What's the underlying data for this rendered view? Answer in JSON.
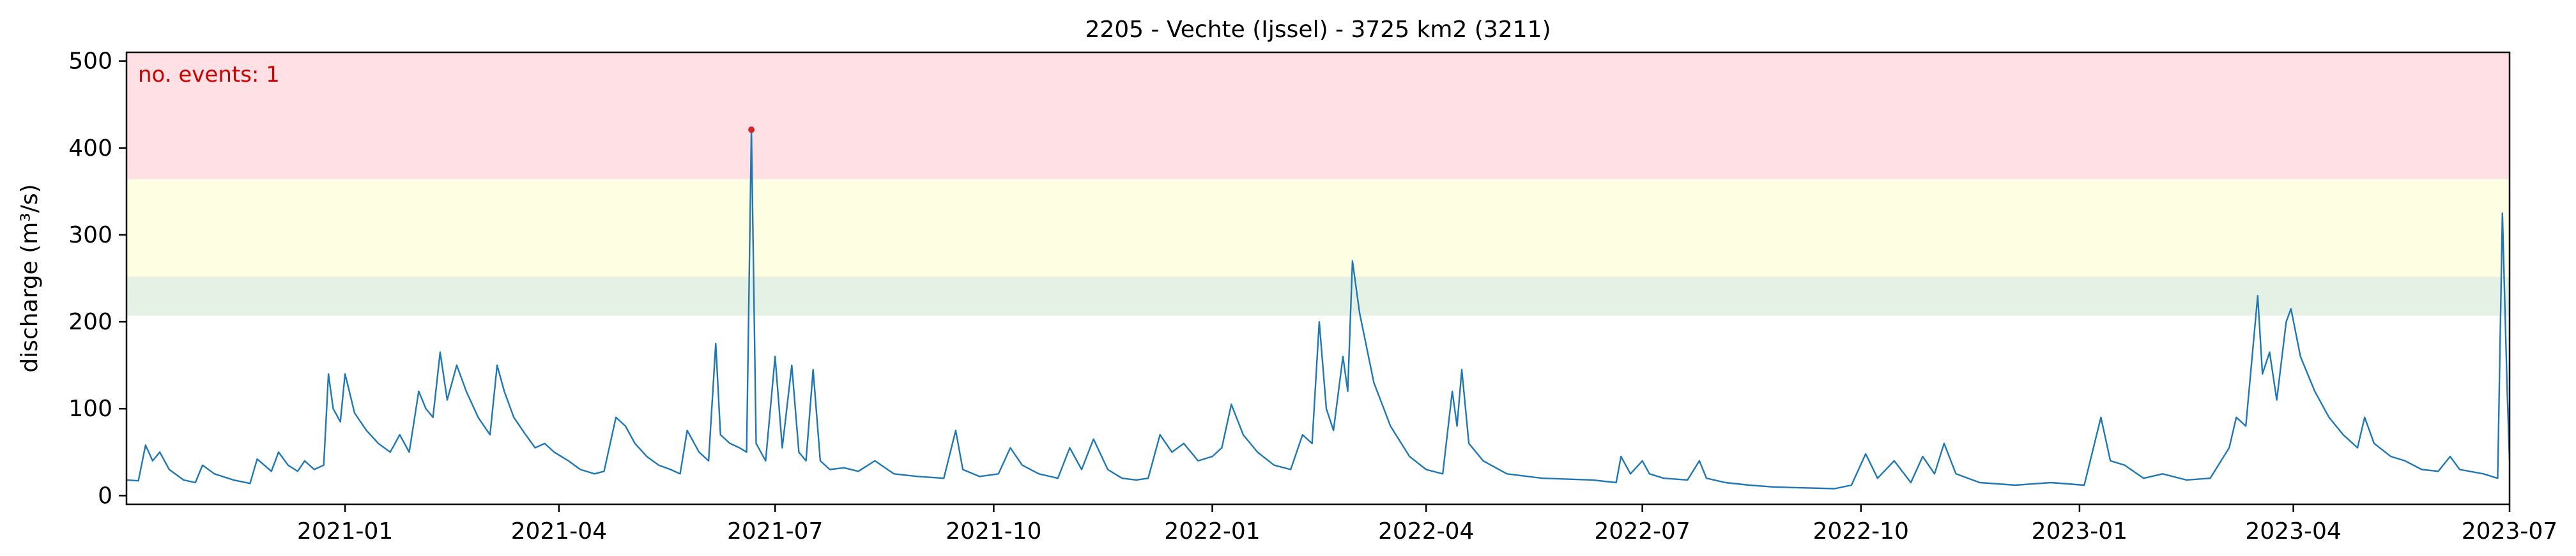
{
  "chart_data": {
    "type": "line",
    "title": "2205 - Vechte (Ijssel) - 3725 km2 (3211)",
    "ylabel": "discharge (m³/s)",
    "xlabel": "",
    "xlim": [
      "2020-10-01",
      "2023-07-01"
    ],
    "ylim": [
      -10,
      510
    ],
    "x_ticks": [
      "2021-01",
      "2021-04",
      "2021-07",
      "2021-10",
      "2022-01",
      "2022-04",
      "2022-07",
      "2022-10",
      "2023-01",
      "2023-04",
      "2023-07"
    ],
    "y_ticks": [
      0,
      100,
      200,
      300,
      400,
      500
    ],
    "grid": false,
    "annotation": "no. events: 1",
    "bands": [
      {
        "from": 207,
        "to": 252,
        "color": "#e6f1e6"
      },
      {
        "from": 252,
        "to": 364,
        "color": "#fefee3"
      },
      {
        "from": 364,
        "to": 510,
        "color": "#ffe1e5"
      }
    ],
    "series": [
      {
        "color": "#1f77b4",
        "points": [
          [
            "2020-10-01",
            18
          ],
          [
            "2020-10-06",
            17
          ],
          [
            "2020-10-09",
            58
          ],
          [
            "2020-10-12",
            40
          ],
          [
            "2020-10-15",
            50
          ],
          [
            "2020-10-19",
            30
          ],
          [
            "2020-10-25",
            18
          ],
          [
            "2020-10-30",
            15
          ],
          [
            "2020-11-02",
            35
          ],
          [
            "2020-11-07",
            25
          ],
          [
            "2020-11-15",
            18
          ],
          [
            "2020-11-22",
            14
          ],
          [
            "2020-11-25",
            42
          ],
          [
            "2020-11-28",
            35
          ],
          [
            "2020-12-01",
            28
          ],
          [
            "2020-12-04",
            50
          ],
          [
            "2020-12-08",
            35
          ],
          [
            "2020-12-12",
            28
          ],
          [
            "2020-12-15",
            40
          ],
          [
            "2020-12-19",
            30
          ],
          [
            "2020-12-23",
            35
          ],
          [
            "2020-12-25",
            140
          ],
          [
            "2020-12-27",
            100
          ],
          [
            "2020-12-30",
            85
          ],
          [
            "2021-01-01",
            140
          ],
          [
            "2021-01-05",
            95
          ],
          [
            "2021-01-10",
            75
          ],
          [
            "2021-01-15",
            60
          ],
          [
            "2021-01-20",
            50
          ],
          [
            "2021-01-24",
            70
          ],
          [
            "2021-01-28",
            50
          ],
          [
            "2021-02-01",
            120
          ],
          [
            "2021-02-04",
            100
          ],
          [
            "2021-02-07",
            90
          ],
          [
            "2021-02-10",
            165
          ],
          [
            "2021-02-13",
            110
          ],
          [
            "2021-02-17",
            150
          ],
          [
            "2021-02-21",
            120
          ],
          [
            "2021-02-26",
            90
          ],
          [
            "2021-03-03",
            70
          ],
          [
            "2021-03-06",
            150
          ],
          [
            "2021-03-09",
            120
          ],
          [
            "2021-03-13",
            90
          ],
          [
            "2021-03-18",
            70
          ],
          [
            "2021-03-22",
            55
          ],
          [
            "2021-03-26",
            60
          ],
          [
            "2021-03-30",
            50
          ],
          [
            "2021-04-05",
            40
          ],
          [
            "2021-04-10",
            30
          ],
          [
            "2021-04-16",
            25
          ],
          [
            "2021-04-20",
            28
          ],
          [
            "2021-04-25",
            90
          ],
          [
            "2021-04-29",
            80
          ],
          [
            "2021-05-03",
            60
          ],
          [
            "2021-05-08",
            45
          ],
          [
            "2021-05-13",
            35
          ],
          [
            "2021-05-18",
            30
          ],
          [
            "2021-05-22",
            25
          ],
          [
            "2021-05-25",
            75
          ],
          [
            "2021-05-30",
            50
          ],
          [
            "2021-06-03",
            40
          ],
          [
            "2021-06-06",
            175
          ],
          [
            "2021-06-08",
            70
          ],
          [
            "2021-06-12",
            60
          ],
          [
            "2021-06-16",
            55
          ],
          [
            "2021-06-19",
            50
          ],
          [
            "2021-06-21",
            421
          ],
          [
            "2021-06-23",
            60
          ],
          [
            "2021-06-27",
            40
          ],
          [
            "2021-07-01",
            160
          ],
          [
            "2021-07-04",
            55
          ],
          [
            "2021-07-08",
            150
          ],
          [
            "2021-07-11",
            50
          ],
          [
            "2021-07-14",
            40
          ],
          [
            "2021-07-17",
            145
          ],
          [
            "2021-07-20",
            40
          ],
          [
            "2021-07-24",
            30
          ],
          [
            "2021-07-30",
            32
          ],
          [
            "2021-08-05",
            28
          ],
          [
            "2021-08-12",
            40
          ],
          [
            "2021-08-20",
            25
          ],
          [
            "2021-08-30",
            22
          ],
          [
            "2021-09-10",
            20
          ],
          [
            "2021-09-15",
            75
          ],
          [
            "2021-09-18",
            30
          ],
          [
            "2021-09-25",
            22
          ],
          [
            "2021-10-03",
            25
          ],
          [
            "2021-10-08",
            55
          ],
          [
            "2021-10-13",
            35
          ],
          [
            "2021-10-20",
            25
          ],
          [
            "2021-10-28",
            20
          ],
          [
            "2021-11-02",
            55
          ],
          [
            "2021-11-07",
            30
          ],
          [
            "2021-11-12",
            65
          ],
          [
            "2021-11-18",
            30
          ],
          [
            "2021-11-24",
            20
          ],
          [
            "2021-11-30",
            18
          ],
          [
            "2021-12-05",
            20
          ],
          [
            "2021-12-10",
            70
          ],
          [
            "2021-12-15",
            50
          ],
          [
            "2021-12-20",
            60
          ],
          [
            "2021-12-26",
            40
          ],
          [
            "2022-01-01",
            45
          ],
          [
            "2022-01-05",
            55
          ],
          [
            "2022-01-09",
            105
          ],
          [
            "2022-01-14",
            70
          ],
          [
            "2022-01-20",
            50
          ],
          [
            "2022-01-27",
            35
          ],
          [
            "2022-02-03",
            30
          ],
          [
            "2022-02-08",
            70
          ],
          [
            "2022-02-12",
            60
          ],
          [
            "2022-02-15",
            200
          ],
          [
            "2022-02-18",
            100
          ],
          [
            "2022-02-21",
            75
          ],
          [
            "2022-02-25",
            160
          ],
          [
            "2022-02-27",
            120
          ],
          [
            "2022-03-01",
            270
          ],
          [
            "2022-03-04",
            210
          ],
          [
            "2022-03-10",
            130
          ],
          [
            "2022-03-17",
            80
          ],
          [
            "2022-03-25",
            45
          ],
          [
            "2022-04-01",
            30
          ],
          [
            "2022-04-08",
            25
          ],
          [
            "2022-04-12",
            120
          ],
          [
            "2022-04-14",
            80
          ],
          [
            "2022-04-16",
            145
          ],
          [
            "2022-04-19",
            60
          ],
          [
            "2022-04-25",
            40
          ],
          [
            "2022-05-05",
            25
          ],
          [
            "2022-05-20",
            20
          ],
          [
            "2022-06-10",
            18
          ],
          [
            "2022-06-20",
            15
          ],
          [
            "2022-06-22",
            45
          ],
          [
            "2022-06-26",
            25
          ],
          [
            "2022-07-01",
            40
          ],
          [
            "2022-07-04",
            25
          ],
          [
            "2022-07-10",
            20
          ],
          [
            "2022-07-20",
            18
          ],
          [
            "2022-07-25",
            40
          ],
          [
            "2022-07-28",
            20
          ],
          [
            "2022-08-05",
            15
          ],
          [
            "2022-08-15",
            12
          ],
          [
            "2022-08-25",
            10
          ],
          [
            "2022-09-05",
            9
          ],
          [
            "2022-09-20",
            8
          ],
          [
            "2022-09-27",
            12
          ],
          [
            "2022-10-03",
            48
          ],
          [
            "2022-10-08",
            20
          ],
          [
            "2022-10-15",
            40
          ],
          [
            "2022-10-22",
            15
          ],
          [
            "2022-10-27",
            45
          ],
          [
            "2022-11-01",
            25
          ],
          [
            "2022-11-05",
            60
          ],
          [
            "2022-11-10",
            25
          ],
          [
            "2022-11-20",
            15
          ],
          [
            "2022-12-05",
            12
          ],
          [
            "2022-12-20",
            15
          ],
          [
            "2023-01-03",
            12
          ],
          [
            "2023-01-10",
            90
          ],
          [
            "2023-01-14",
            40
          ],
          [
            "2023-01-20",
            35
          ],
          [
            "2023-01-28",
            20
          ],
          [
            "2023-02-05",
            25
          ],
          [
            "2023-02-15",
            18
          ],
          [
            "2023-02-25",
            20
          ],
          [
            "2023-03-05",
            55
          ],
          [
            "2023-03-08",
            90
          ],
          [
            "2023-03-12",
            80
          ],
          [
            "2023-03-17",
            230
          ],
          [
            "2023-03-19",
            140
          ],
          [
            "2023-03-22",
            165
          ],
          [
            "2023-03-25",
            110
          ],
          [
            "2023-03-29",
            200
          ],
          [
            "2023-03-31",
            215
          ],
          [
            "2023-04-04",
            160
          ],
          [
            "2023-04-10",
            120
          ],
          [
            "2023-04-16",
            90
          ],
          [
            "2023-04-22",
            70
          ],
          [
            "2023-04-28",
            55
          ],
          [
            "2023-05-01",
            90
          ],
          [
            "2023-05-05",
            60
          ],
          [
            "2023-05-12",
            45
          ],
          [
            "2023-05-18",
            40
          ],
          [
            "2023-05-25",
            30
          ],
          [
            "2023-06-01",
            28
          ],
          [
            "2023-06-06",
            45
          ],
          [
            "2023-06-10",
            30
          ],
          [
            "2023-06-20",
            25
          ],
          [
            "2023-06-26",
            20
          ],
          [
            "2023-06-28",
            325
          ],
          [
            "2023-06-30",
            120
          ],
          [
            "2023-07-01",
            40
          ]
        ]
      }
    ],
    "event_markers": [
      {
        "x": "2021-06-21",
        "y": 421,
        "color": "#d62728"
      }
    ]
  }
}
